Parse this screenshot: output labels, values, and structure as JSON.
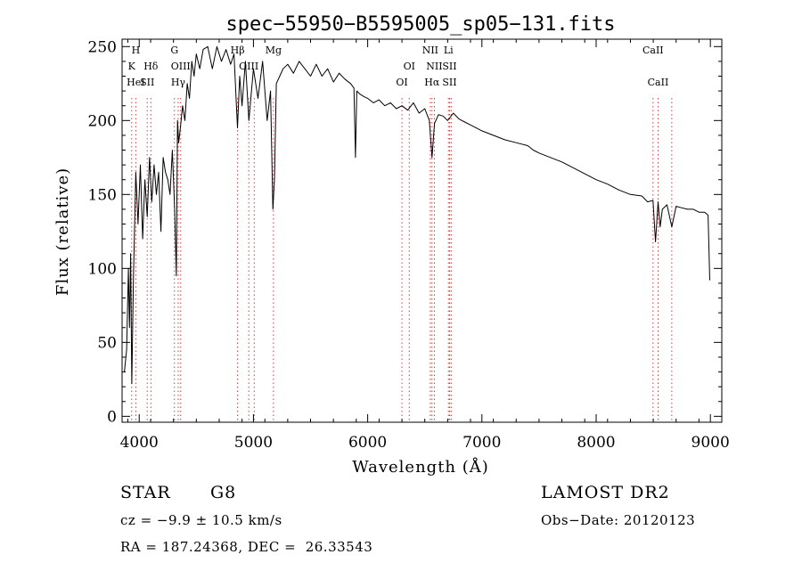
{
  "chart_data": {
    "type": "line",
    "title": "spec−55950−B5595005_sp05−131.fits",
    "xlabel": "Wavelength (Å)",
    "ylabel": "Flux (relative)",
    "xlim": [
      3850,
      9100
    ],
    "ylim": [
      -4,
      255
    ],
    "xticks": [
      4000,
      5000,
      6000,
      7000,
      8000,
      9000
    ],
    "yticks": [
      0,
      50,
      100,
      150,
      200,
      250
    ],
    "grid": false,
    "series": [
      {
        "x": [
          3870,
          3890,
          3905,
          3915,
          3925,
          3935,
          3950,
          3970,
          3990,
          4010,
          4030,
          4050,
          4070,
          4090,
          4110,
          4130,
          4150,
          4170,
          4190,
          4210,
          4230,
          4250,
          4270,
          4290,
          4310,
          4325,
          4335,
          4345,
          4360,
          4380,
          4400,
          4420,
          4440,
          4460,
          4480,
          4500,
          4530,
          4560,
          4600,
          4640,
          4680,
          4720,
          4760,
          4800,
          4830,
          4860,
          4880,
          4900,
          4930,
          4960,
          5000,
          5040,
          5080,
          5120,
          5150,
          5170,
          5184,
          5200,
          5230,
          5260,
          5300,
          5350,
          5400,
          5450,
          5500,
          5550,
          5600,
          5650,
          5700,
          5750,
          5800,
          5850,
          5880,
          5893,
          5905,
          5930,
          5970,
          6000,
          6050,
          6100,
          6150,
          6200,
          6250,
          6300,
          6350,
          6400,
          6450,
          6500,
          6540,
          6563,
          6585,
          6620,
          6660,
          6700,
          6750,
          6800,
          6850,
          6900,
          6950,
          7000,
          7100,
          7200,
          7300,
          7400,
          7450,
          7500,
          7600,
          7700,
          7800,
          7900,
          8000,
          8100,
          8200,
          8300,
          8400,
          8450,
          8498,
          8520,
          8542,
          8560,
          8580,
          8620,
          8662,
          8700,
          8750,
          8800,
          8850,
          8900,
          8950,
          8980,
          8995
        ],
        "values": [
          30,
          45,
          100,
          60,
          110,
          22,
          95,
          165,
          130,
          170,
          120,
          160,
          135,
          175,
          145,
          170,
          150,
          165,
          125,
          175,
          165,
          160,
          150,
          180,
          140,
          95,
          200,
          185,
          195,
          210,
          200,
          225,
          215,
          240,
          230,
          245,
          235,
          248,
          250,
          235,
          250,
          240,
          248,
          238,
          245,
          195,
          230,
          210,
          240,
          200,
          235,
          215,
          240,
          200,
          220,
          140,
          160,
          225,
          230,
          235,
          238,
          232,
          240,
          235,
          230,
          238,
          230,
          235,
          226,
          232,
          228,
          225,
          222,
          175,
          220,
          218,
          216,
          215,
          212,
          214,
          210,
          212,
          208,
          210,
          207,
          212,
          205,
          208,
          200,
          175,
          198,
          204,
          203,
          200,
          205,
          201,
          199,
          197,
          195,
          193,
          190,
          187,
          185,
          183,
          180,
          178,
          175,
          172,
          168,
          164,
          160,
          157,
          153,
          150,
          149,
          145,
          146,
          118,
          145,
          128,
          140,
          143,
          128,
          142,
          141,
          140,
          140,
          138,
          138,
          136,
          92
        ]
      }
    ],
    "lines": [
      {
        "x": 3934,
        "labels": [
          "K"
        ]
      },
      {
        "x": 3970,
        "labels": [
          "H",
          "HeI"
        ]
      },
      {
        "x": 4102,
        "labels": [
          "Hδ"
        ]
      },
      {
        "x": 4070,
        "labels": [
          "SII"
        ]
      },
      {
        "x": 4308,
        "labels": [
          "G"
        ]
      },
      {
        "x": 4341,
        "labels": [
          "Hγ"
        ]
      },
      {
        "x": 4363,
        "labels": [
          "OIII"
        ]
      },
      {
        "x": 4861,
        "labels": [
          "Hβ"
        ]
      },
      {
        "x": 4959,
        "labels": [
          "OIII"
        ]
      },
      {
        "x": 5007,
        "labels": [
          ""
        ]
      },
      {
        "x": 5175,
        "labels": [
          "Mg"
        ]
      },
      {
        "x": 6300,
        "labels": [
          "OI"
        ]
      },
      {
        "x": 6364,
        "labels": [
          "OI"
        ]
      },
      {
        "x": 6548,
        "labels": [
          "NII"
        ]
      },
      {
        "x": 6563,
        "labels": [
          "Hα"
        ]
      },
      {
        "x": 6584,
        "labels": [
          "NII"
        ]
      },
      {
        "x": 6707,
        "labels": [
          "Li"
        ]
      },
      {
        "x": 6717,
        "labels": [
          "SII"
        ]
      },
      {
        "x": 6731,
        "labels": [
          ""
        ]
      },
      {
        "x": 8498,
        "labels": [
          "CaII"
        ]
      },
      {
        "x": 8542,
        "labels": [
          "CaII"
        ]
      },
      {
        "x": 8662,
        "labels": [
          ""
        ]
      }
    ]
  },
  "info": {
    "object_class": "STAR",
    "subclass": "G8",
    "survey": "LAMOST DR2",
    "cz": "cz = −9.9 ± 10.5 km/s",
    "obs_date": "Obs−Date: 20120123",
    "coords": "RA = 187.24368, DEC =  26.33543"
  },
  "colors": {
    "line_marker": "#d04040",
    "spectrum": "#000000"
  }
}
